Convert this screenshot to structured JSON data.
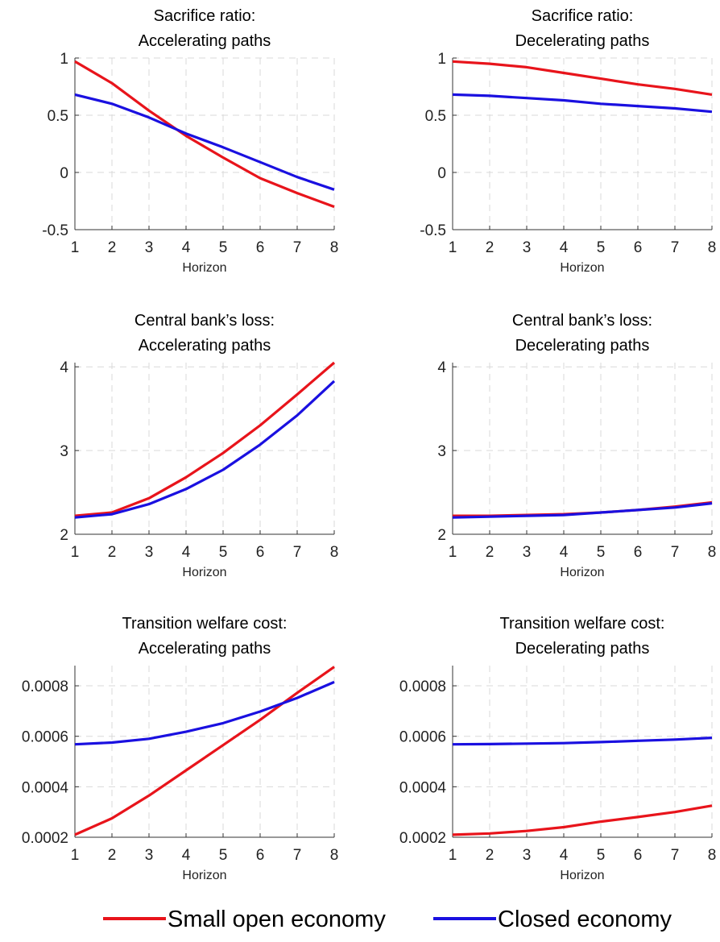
{
  "chart_data": [
    {
      "type": "line",
      "title": [
        "Sacrifice ratio:",
        "Accelerating paths"
      ],
      "xlabel": "Horizon",
      "ylabel": "",
      "x": [
        1,
        2,
        3,
        4,
        5,
        6,
        7,
        8
      ],
      "xticks": [
        "1",
        "2",
        "3",
        "4",
        "5",
        "6",
        "7",
        "8"
      ],
      "ylim": [
        -0.5,
        1
      ],
      "yticks": [
        -0.5,
        0,
        0.5,
        1
      ],
      "ytick_labels": [
        "-0.5",
        "0",
        "0.5",
        "1"
      ],
      "grid": true,
      "series": [
        {
          "name": "Small open economy",
          "color": "#e8141b",
          "values": [
            0.97,
            0.78,
            0.54,
            0.32,
            0.13,
            -0.05,
            -0.18,
            -0.3
          ]
        },
        {
          "name": "Closed economy",
          "color": "#1a10e0",
          "values": [
            0.68,
            0.6,
            0.48,
            0.34,
            0.22,
            0.09,
            -0.04,
            -0.15
          ]
        }
      ]
    },
    {
      "type": "line",
      "title": [
        "Sacrifice ratio:",
        "Decelerating paths"
      ],
      "xlabel": "Horizon",
      "ylabel": "",
      "x": [
        1,
        2,
        3,
        4,
        5,
        6,
        7,
        8
      ],
      "xticks": [
        "1",
        "2",
        "3",
        "4",
        "5",
        "6",
        "7",
        "8"
      ],
      "ylim": [
        -0.5,
        1
      ],
      "yticks": [
        -0.5,
        0,
        0.5,
        1
      ],
      "ytick_labels": [
        "-0.5",
        "0",
        "0.5",
        "1"
      ],
      "grid": true,
      "series": [
        {
          "name": "Small open economy",
          "color": "#e8141b",
          "values": [
            0.97,
            0.95,
            0.92,
            0.87,
            0.82,
            0.77,
            0.73,
            0.68
          ]
        },
        {
          "name": "Closed economy",
          "color": "#1a10e0",
          "values": [
            0.68,
            0.67,
            0.65,
            0.63,
            0.6,
            0.58,
            0.56,
            0.53
          ]
        }
      ]
    },
    {
      "type": "line",
      "title": [
        "Central bank’s loss:",
        "Accelerating paths"
      ],
      "xlabel": "Horizon",
      "ylabel": "",
      "x": [
        1,
        2,
        3,
        4,
        5,
        6,
        7,
        8
      ],
      "xticks": [
        "1",
        "2",
        "3",
        "4",
        "5",
        "6",
        "7",
        "8"
      ],
      "ylim": [
        2,
        4.05
      ],
      "yticks": [
        2,
        3,
        4
      ],
      "ytick_labels": [
        "2",
        "3",
        "4"
      ],
      "grid": true,
      "series": [
        {
          "name": "Small open economy",
          "color": "#e8141b",
          "values": [
            2.22,
            2.26,
            2.43,
            2.68,
            2.97,
            3.3,
            3.67,
            4.05
          ]
        },
        {
          "name": "Closed economy",
          "color": "#1a10e0",
          "values": [
            2.2,
            2.24,
            2.36,
            2.54,
            2.77,
            3.07,
            3.42,
            3.83
          ]
        }
      ]
    },
    {
      "type": "line",
      "title": [
        "Central bank’s loss:",
        "Decelerating paths"
      ],
      "xlabel": "Horizon",
      "ylabel": "",
      "x": [
        1,
        2,
        3,
        4,
        5,
        6,
        7,
        8
      ],
      "xticks": [
        "1",
        "2",
        "3",
        "4",
        "5",
        "6",
        "7",
        "8"
      ],
      "ylim": [
        2,
        4.05
      ],
      "yticks": [
        2,
        3,
        4
      ],
      "ytick_labels": [
        "2",
        "3",
        "4"
      ],
      "grid": true,
      "series": [
        {
          "name": "Small open economy",
          "color": "#e8141b",
          "values": [
            2.22,
            2.22,
            2.23,
            2.24,
            2.26,
            2.29,
            2.33,
            2.38
          ]
        },
        {
          "name": "Closed economy",
          "color": "#1a10e0",
          "values": [
            2.2,
            2.21,
            2.22,
            2.23,
            2.26,
            2.29,
            2.32,
            2.37
          ]
        }
      ]
    },
    {
      "type": "line",
      "title": [
        "Transition welfare cost:",
        "Accelerating paths"
      ],
      "xlabel": "Horizon",
      "ylabel": "",
      "x": [
        1,
        2,
        3,
        4,
        5,
        6,
        7,
        8
      ],
      "xticks": [
        "1",
        "2",
        "3",
        "4",
        "5",
        "6",
        "7",
        "8"
      ],
      "ylim": [
        0.0002,
        0.00088
      ],
      "yticks": [
        0.0002,
        0.0004,
        0.0006,
        0.0008
      ],
      "ytick_labels": [
        "0.0002",
        "0.0004",
        "0.0006",
        "0.0008"
      ],
      "grid": true,
      "series": [
        {
          "name": "Small open economy",
          "color": "#e8141b",
          "values": [
            0.00021,
            0.000275,
            0.000365,
            0.000465,
            0.000565,
            0.000665,
            0.000772,
            0.000875
          ]
        },
        {
          "name": "Closed economy",
          "color": "#1a10e0",
          "values": [
            0.000568,
            0.000575,
            0.00059,
            0.000618,
            0.000652,
            0.000698,
            0.000752,
            0.000815
          ]
        }
      ]
    },
    {
      "type": "line",
      "title": [
        "Transition welfare cost:",
        "Decelerating paths"
      ],
      "xlabel": "Horizon",
      "ylabel": "",
      "x": [
        1,
        2,
        3,
        4,
        5,
        6,
        7,
        8
      ],
      "xticks": [
        "1",
        "2",
        "3",
        "4",
        "5",
        "6",
        "7",
        "8"
      ],
      "ylim": [
        0.0002,
        0.00088
      ],
      "yticks": [
        0.0002,
        0.0004,
        0.0006,
        0.0008
      ],
      "ytick_labels": [
        "0.0002",
        "0.0004",
        "0.0006",
        "0.0008"
      ],
      "grid": true,
      "series": [
        {
          "name": "Small open economy",
          "color": "#e8141b",
          "values": [
            0.00021,
            0.000215,
            0.000225,
            0.00024,
            0.000262,
            0.00028,
            0.0003,
            0.000325
          ]
        },
        {
          "name": "Closed economy",
          "color": "#1a10e0",
          "values": [
            0.000568,
            0.000569,
            0.000571,
            0.000573,
            0.000577,
            0.000582,
            0.000587,
            0.000594
          ]
        }
      ]
    }
  ],
  "legend": {
    "placement": "bottom-center",
    "items": [
      {
        "label": "Small open economy",
        "color": "#e8141b"
      },
      {
        "label": "Closed economy",
        "color": "#1a10e0"
      }
    ]
  }
}
